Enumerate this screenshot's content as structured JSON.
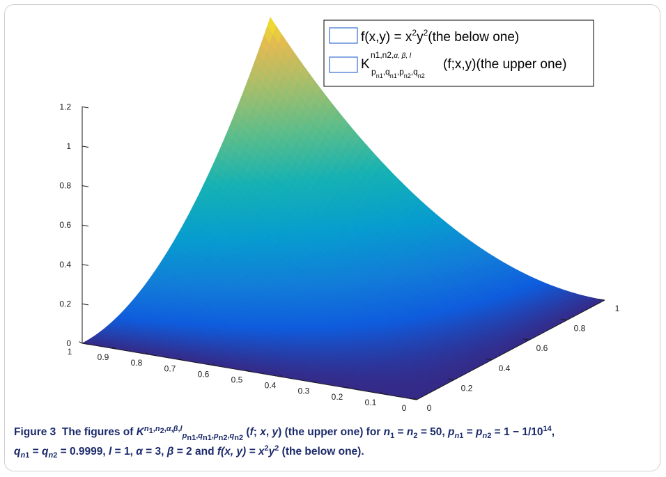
{
  "chart_data": {
    "type": "surface3d",
    "title": "",
    "xlabel": "",
    "ylabel": "",
    "zlabel": "",
    "x_ticks": [
      "1",
      "0.9",
      "0.8",
      "0.7",
      "0.6",
      "0.5",
      "0.4",
      "0.3",
      "0.2",
      "0.1",
      "0"
    ],
    "y_ticks": [
      "0",
      "0.2",
      "0.4",
      "0.6",
      "0.8",
      "1"
    ],
    "z_ticks": [
      "0",
      "0.2",
      "0.4",
      "0.6",
      "0.8",
      "1",
      "1.2"
    ],
    "xlim": [
      0,
      1
    ],
    "ylim": [
      0,
      1
    ],
    "zlim": [
      0,
      1.2
    ],
    "grid": false,
    "legend_position": "top-right",
    "colormap": "parula",
    "series": [
      {
        "name": "f(x,y) = x²y²(the below one)",
        "function": "x^2*y^2",
        "z_at_x1_y1": 1.0
      },
      {
        "name": "K(f;x,y)(the upper one)",
        "z_at_x1_y1": 1.15
      }
    ]
  },
  "legend": {
    "entry1": {
      "prefix": "f(x,y) = x",
      "sup1": "2",
      "mid": "y",
      "sup2": "2",
      "suffix": "(the below one)"
    },
    "entry2": {
      "K": "K",
      "sup": "n1,n2,",
      "sup_greek": "α, β, l",
      "sub_p": "p",
      "sub_n1": "n1",
      "sub_q": ",q",
      "sub_n1b": "n1",
      "sub_p2": ",p",
      "sub_n2": "n2",
      "sub_q2": ",q",
      "sub_n2b": "n2",
      "sub_comma": ",",
      "suffix": "(f;x,y)(the upper one)"
    }
  },
  "caption": {
    "figure_label": "Figure 3",
    "t1": "The figures of ",
    "K": "K",
    "t2": " (the upper one) for ",
    "t3": "n",
    "t4": " = ",
    "t5": " = 50, ",
    "t6": " = 1 − 1/10",
    "t7": "14",
    "t8": ",",
    "t9": " = 0.9999, ",
    "t10": "l",
    "t11": " = 1, ",
    "t12": "α",
    "t13": " = 3, ",
    "t14": "β",
    "t15": " = 2 and ",
    "t16": "f",
    "t17": "(x, y) = x",
    "t18": "2",
    "t19": "y",
    "t20": "2",
    "t21": " (the below one)."
  }
}
